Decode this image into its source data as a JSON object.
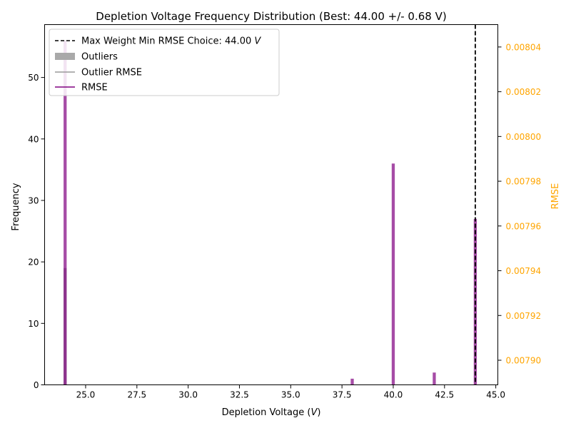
{
  "chart_data": {
    "type": "bar",
    "title": "Depletion Voltage Frequency Distribution (Best: 44.00 +/- 0.68 V)",
    "xlabel": "Depletion Voltage (V)",
    "ylabel": "Frequency",
    "y2label": "RMSE",
    "xlim": [
      23.0,
      45.1
    ],
    "ylim": [
      0,
      58.6
    ],
    "y2lim": [
      0.007889,
      0.00805
    ],
    "xticks": [
      "25.0",
      "27.5",
      "30.0",
      "32.5",
      "35.0",
      "37.5",
      "40.0",
      "42.5",
      "45.0"
    ],
    "yticks": [
      "0",
      "10",
      "20",
      "30",
      "40",
      "50"
    ],
    "y2ticks": [
      "0.00790",
      "0.00792",
      "0.00794",
      "0.00796",
      "0.00798",
      "0.00800",
      "0.00802",
      "0.00804"
    ],
    "bar_width": 0.15,
    "series": [
      {
        "name": "Outliers",
        "color": "#808080",
        "bars": [
          {
            "x": 24.0,
            "y": 19
          }
        ]
      },
      {
        "name": "Histogram",
        "color": "#800080",
        "bars": [
          {
            "x": 24.0,
            "y": 56
          },
          {
            "x": 38.0,
            "y": 1
          },
          {
            "x": 40.0,
            "y": 36
          },
          {
            "x": 42.0,
            "y": 2
          },
          {
            "x": 44.0,
            "y": 27
          }
        ]
      }
    ],
    "best_line": {
      "x": 44.0,
      "color": "#000000"
    },
    "legend": {
      "position": "top-left",
      "entries": [
        {
          "label": "Max Weight Min RMSE Choice: 44.00 V",
          "kind": "dashed-line",
          "color": "#000000"
        },
        {
          "label": "Outliers",
          "kind": "patch",
          "color": "#a9a9a9"
        },
        {
          "label": "Outlier RMSE",
          "kind": "line",
          "color": "#999999"
        },
        {
          "label": "RMSE",
          "kind": "line",
          "color": "#800080"
        }
      ]
    },
    "colors": {
      "axis": "#000000",
      "secondary_axis": "#ffa500"
    },
    "grid": false
  }
}
